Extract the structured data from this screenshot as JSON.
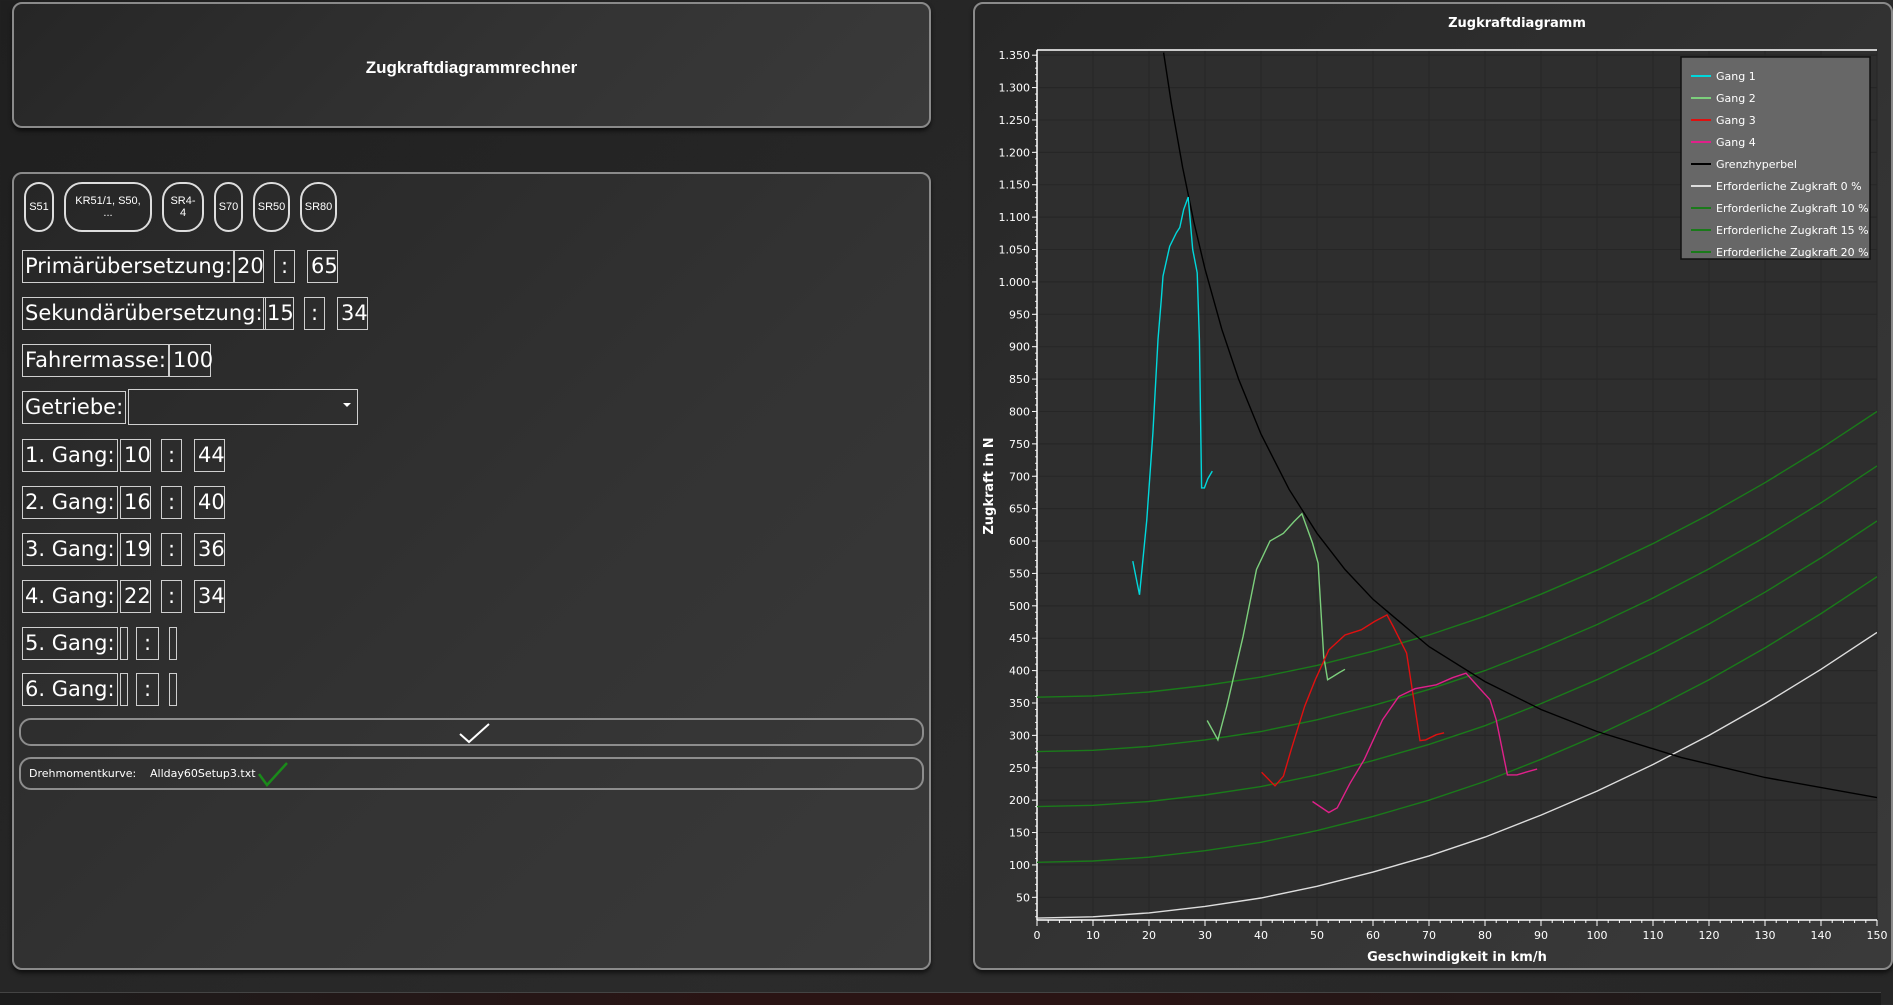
{
  "app": {
    "title": "Zugkraftdiagrammrechner"
  },
  "presets": [
    "S51",
    "KR51/1, S50, ...",
    "SR4-4",
    "S70",
    "SR50",
    "SR80"
  ],
  "form": {
    "primary": {
      "label": "Primärübersetzung:",
      "a": "20",
      "sep": ":",
      "b": "65"
    },
    "secondary": {
      "label": "Sekundärübersetzung:",
      "a": "15",
      "sep": ":",
      "b": "34"
    },
    "rider_mass": {
      "label": "Fahrermasse:",
      "value": "100"
    },
    "gearbox": {
      "label": "Getriebe:",
      "value": ""
    },
    "gears": [
      {
        "label": "1. Gang:",
        "a": "10",
        "sep": ":",
        "b": "44"
      },
      {
        "label": "2. Gang:",
        "a": "16",
        "sep": ":",
        "b": "40"
      },
      {
        "label": "3. Gang:",
        "a": "19",
        "sep": ":",
        "b": "36"
      },
      {
        "label": "4. Gang:",
        "a": "22",
        "sep": ":",
        "b": "34"
      },
      {
        "label": "5. Gang:",
        "a": "",
        "sep": ":",
        "b": ""
      },
      {
        "label": "6. Gang:",
        "a": "",
        "sep": ":",
        "b": ""
      }
    ],
    "confirm_icon": "checkmark-icon",
    "torque": {
      "label": "Drehmomentkurve:",
      "file": "Allday60Setup3.txt",
      "status_icon": "green-checkmark-icon",
      "status_color": "#1a8a1a"
    }
  },
  "chart_data": {
    "type": "line",
    "title": "Zugkraftdiagramm",
    "xlabel": "Geschwindigkeit in km/h",
    "ylabel": "Zugkraft in N",
    "xlim": [
      0,
      150
    ],
    "ylim": [
      15,
      1358
    ],
    "xticks": [
      0,
      10,
      20,
      30,
      40,
      50,
      60,
      70,
      80,
      90,
      100,
      110,
      120,
      130,
      140,
      150
    ],
    "yticks": [
      50,
      100,
      150,
      200,
      250,
      300,
      350,
      400,
      450,
      500,
      550,
      600,
      650,
      700,
      750,
      800,
      850,
      900,
      950,
      1000,
      1050,
      1100,
      1150,
      1200,
      1250,
      1300,
      1350
    ],
    "ytick_labels": [
      "50",
      "100",
      "150",
      "200",
      "250",
      "300",
      "350",
      "400",
      "450",
      "500",
      "550",
      "600",
      "650",
      "700",
      "750",
      "800",
      "850",
      "900",
      "950",
      "1.000",
      "1.050",
      "1.100",
      "1.150",
      "1.200",
      "1.250",
      "1.300",
      "1.350"
    ],
    "grid": true,
    "legend_position": "top-right",
    "series": [
      {
        "name": "Gang 1",
        "color": "#00d8dc",
        "x": [
          17.1,
          18.3,
          19.6,
          20.7,
          21.6,
          22.2,
          22.5,
          23.7,
          24.9,
          25.5,
          26.2,
          27.0,
          27.8,
          28.6,
          29.0,
          29.4,
          29.9,
          30.5,
          31.3
        ],
        "y": [
          569,
          517,
          633,
          767,
          911,
          973,
          1009,
          1055,
          1076,
          1084,
          1112,
          1131,
          1050,
          1014,
          911,
          682,
          682,
          696,
          708
        ]
      },
      {
        "name": "Gang 2",
        "color": "#7ccf7c",
        "x": [
          30.4,
          32.3,
          33.9,
          36.8,
          39.2,
          41.6,
          44.0,
          45.9,
          47.3,
          49.2,
          50.2,
          51.2,
          51.9,
          52.9,
          54.0,
          55.0
        ],
        "y": [
          323,
          293,
          345,
          453,
          556,
          600,
          612,
          630,
          642,
          597,
          566,
          422,
          386,
          391,
          397,
          402
        ]
      },
      {
        "name": "Gang 3",
        "color": "#e01010",
        "x": [
          40.1,
          42.5,
          44.0,
          45.4,
          47.8,
          49.7,
          52.1,
          55.0,
          57.9,
          60.3,
          62.5,
          63.6,
          66.0,
          67.0,
          68.4,
          69.4,
          71.3,
          72.7
        ],
        "y": [
          243,
          222,
          237,
          278,
          345,
          386,
          432,
          455,
          463,
          476,
          486,
          468,
          427,
          371,
          292,
          293,
          301,
          304
        ]
      },
      {
        "name": "Gang 4",
        "color": "#e0208a",
        "x": [
          49.2,
          52.1,
          53.6,
          55.9,
          58.4,
          61.7,
          64.6,
          67.5,
          71.3,
          74.2,
          76.6,
          79.0,
          80.9,
          82.0,
          84.0,
          85.7,
          87.6,
          89.3
        ],
        "y": [
          198,
          181,
          188,
          226,
          262,
          324,
          360,
          372,
          378,
          389,
          396,
          373,
          355,
          324,
          239,
          239,
          244,
          248
        ]
      },
      {
        "name": "Grenzhyperbel",
        "color": "#000000",
        "x": [
          22.6,
          24,
          26,
          28,
          30,
          33,
          36,
          40,
          45,
          50,
          55,
          60,
          70,
          80,
          90,
          100,
          115,
          130,
          150
        ],
        "y": [
          1354,
          1275,
          1177,
          1093,
          1020,
          927,
          850,
          765,
          680,
          612,
          556,
          510,
          437,
          383,
          340,
          306,
          266,
          235,
          204
        ]
      },
      {
        "name": "Erforderliche Zugkraft 0 %",
        "color": "#dddddd",
        "x": [
          0,
          10,
          20,
          30,
          40,
          50,
          60,
          70,
          80,
          90,
          100,
          110,
          120,
          130,
          140,
          150
        ],
        "y": [
          18,
          20,
          26,
          36,
          49,
          67,
          89,
          114,
          143,
          177,
          214,
          255,
          300,
          349,
          402,
          459
        ]
      },
      {
        "name": "Erforderliche Zugkraft 10 %",
        "color": "#1a7a1a",
        "x": [
          0,
          10,
          20,
          30,
          40,
          50,
          60,
          70,
          80,
          90,
          100,
          110,
          120,
          130,
          140,
          150
        ],
        "y": [
          190,
          192,
          198,
          208,
          221,
          239,
          261,
          286,
          315,
          349,
          386,
          427,
          472,
          521,
          574,
          631
        ]
      },
      {
        "name": "Erforderliche Zugkraft 15 %",
        "color": "#1a7a1a",
        "x": [
          0,
          10,
          20,
          30,
          40,
          50,
          60,
          70,
          80,
          90,
          100,
          110,
          120,
          130,
          140,
          150
        ],
        "y": [
          275,
          277,
          283,
          293,
          306,
          324,
          346,
          371,
          400,
          434,
          471,
          512,
          557,
          606,
          659,
          716
        ]
      },
      {
        "name": "Erforderliche Zugkraft 20 %",
        "color": "#1a7a1a",
        "x": [
          0,
          10,
          20,
          30,
          40,
          50,
          60,
          70,
          80,
          90,
          100,
          110,
          120,
          130,
          140,
          150
        ],
        "y": [
          359,
          361,
          367,
          377,
          390,
          408,
          430,
          455,
          484,
          518,
          555,
          596,
          641,
          690,
          743,
          800
        ]
      },
      {
        "color": "#1a7a1a",
        "x": [
          0,
          10,
          20,
          30,
          40,
          50,
          60,
          70,
          80,
          90,
          100,
          110,
          120,
          130,
          140,
          150
        ],
        "y": [
          104,
          106,
          112,
          122,
          135,
          153,
          175,
          200,
          229,
          263,
          300,
          341,
          386,
          435,
          488,
          545
        ]
      }
    ]
  }
}
